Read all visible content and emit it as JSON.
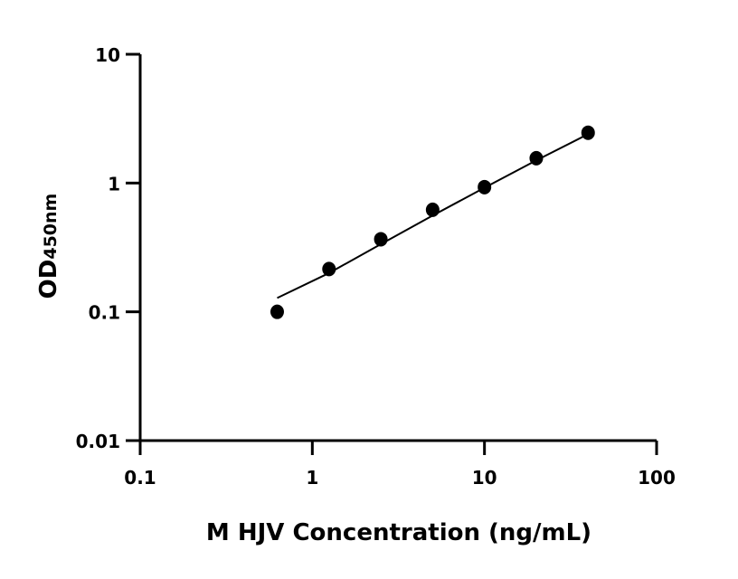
{
  "chart_data": {
    "type": "scatter",
    "xlabel": "M HJV Concentration (ng/mL)",
    "ylabel_main": "OD",
    "ylabel_sub": "450nm",
    "x_scale": "log",
    "y_scale": "log",
    "xlim": [
      0.1,
      100
    ],
    "ylim": [
      0.01,
      10
    ],
    "x_ticks": [
      0.1,
      1,
      10,
      100
    ],
    "x_tick_labels": [
      "0.1",
      "1",
      "10",
      "100"
    ],
    "y_ticks": [
      0.01,
      0.1,
      1,
      10
    ],
    "y_tick_labels": [
      "0.01",
      "0.1",
      "1",
      "10"
    ],
    "grid": false,
    "points": {
      "x": [
        0.625,
        1.25,
        2.5,
        5,
        10,
        20,
        40
      ],
      "y": [
        0.1,
        0.215,
        0.366,
        0.62,
        0.93,
        1.56,
        2.46
      ]
    },
    "fit_curve": {
      "x": [
        0.625,
        1.25,
        2.5,
        5,
        10,
        20,
        40
      ],
      "y": [
        0.128,
        0.2,
        0.335,
        0.56,
        0.92,
        1.5,
        2.4
      ]
    },
    "colors": {
      "marker": "#000000",
      "line": "#000000",
      "axis": "#000000"
    }
  }
}
